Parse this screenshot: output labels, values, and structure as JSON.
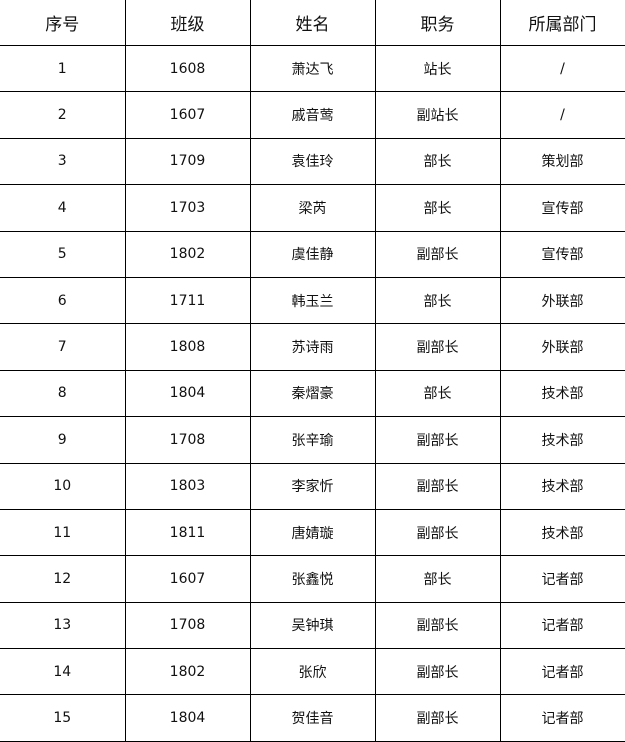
{
  "headers": [
    "序号",
    "班级",
    "姓名",
    "职务",
    "所属部门"
  ],
  "rows": [
    [
      "1",
      "1608",
      "萧达飞",
      "站长",
      "/"
    ],
    [
      "2",
      "1607",
      "戚音莺",
      "副站长",
      "/"
    ],
    [
      "3",
      "1709",
      "袁佳玲",
      "部长",
      "策划部"
    ],
    [
      "4",
      "1703",
      "梁芮",
      "部长",
      "宣传部"
    ],
    [
      "5",
      "1802",
      "虞佳静",
      "副部长",
      "宣传部"
    ],
    [
      "6",
      "1711",
      "韩玉兰",
      "部长",
      "外联部"
    ],
    [
      "7",
      "1808",
      "苏诗雨",
      "副部长",
      "外联部"
    ],
    [
      "8",
      "1804",
      "秦熠豪",
      "部长",
      "技术部"
    ],
    [
      "9",
      "1708",
      "张辛瑜",
      "副部长",
      "技术部"
    ],
    [
      "10",
      "1803",
      "李家忻",
      "副部长",
      "技术部"
    ],
    [
      "11",
      "1811",
      "唐婧璇",
      "副部长",
      "技术部"
    ],
    [
      "12",
      "1607",
      "张鑫悦",
      "部长",
      "记者部"
    ],
    [
      "13",
      "1708",
      "吴钟琪",
      "副部长",
      "记者部"
    ],
    [
      "14",
      "1802",
      "张欣",
      "副部长",
      "记者部"
    ],
    [
      "15",
      "1804",
      "贺佳音",
      "副部长",
      "记者部"
    ]
  ]
}
